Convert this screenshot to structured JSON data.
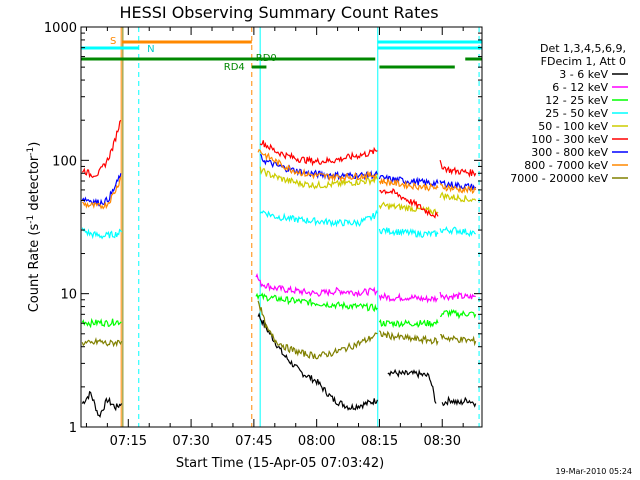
{
  "chart_data": {
    "type": "line",
    "title": "HESSI Observing Summary Count Rates",
    "xlabel": "Start Time (15-Apr-05 07:03:42)",
    "ylabel_main": "Count Rate (s",
    "ylabel_sup1": "-1",
    "ylabel_mid": " detector",
    "ylabel_sup2": "-1",
    "ylabel_end": ")",
    "y_scale": "log",
    "ylim": [
      1,
      1000
    ],
    "xlim_minutes": [
      63.7,
      159.5
    ],
    "x_ticks": [
      {
        "label": "07:15",
        "minutes": 75
      },
      {
        "label": "07:30",
        "minutes": 90
      },
      {
        "label": "07:45",
        "minutes": 105
      },
      {
        "label": "08:00",
        "minutes": 120
      },
      {
        "label": "08:15",
        "minutes": 135
      },
      {
        "label": "08:30",
        "minutes": 150
      }
    ],
    "y_ticks": [
      {
        "label": "1",
        "value": 1
      },
      {
        "label": "10",
        "value": 10
      },
      {
        "label": "100",
        "value": 100
      },
      {
        "label": "1000",
        "value": 1000
      }
    ],
    "legend": {
      "placement": "right",
      "header": [
        "Det 1,3,4,5,6,9,",
        "FDecim 1, Att 0"
      ]
    },
    "series": [
      {
        "name": "3 - 6 keV",
        "color": "#000000",
        "segments": [
          {
            "x": [
              64,
              66,
              68,
              70,
              72,
              73.4
            ],
            "y": [
              1.5,
              1.8,
              1.2,
              1.6,
              1.4,
              1.5
            ]
          },
          {
            "x": [
              106,
              108,
              112,
              116,
              120,
              124,
              128,
              132,
              134.5
            ],
            "y": [
              7.0,
              5.5,
              3.5,
              2.6,
              2.2,
              1.6,
              1.4,
              1.5,
              1.6
            ]
          },
          {
            "x": [
              137,
              140,
              144,
              147,
              148.5
            ],
            "y": [
              2.6,
              2.5,
              2.5,
              2.4,
              1.5
            ]
          },
          {
            "x": [
              150,
              152,
              154,
              156,
              158
            ],
            "y": [
              1.5,
              1.6,
              1.5,
              1.6,
              1.5
            ]
          }
        ]
      },
      {
        "name": "6 - 12 keV",
        "color": "#ff00ff",
        "segments": [
          {
            "x": [
              105.5,
              106.5,
              110,
              115,
              120,
              125,
              130,
              134.5
            ],
            "y": [
              14,
              12,
              11,
              10.5,
              10,
              10.5,
              10.2,
              10.5
            ]
          },
          {
            "x": [
              135,
              138,
              142,
              146,
              149
            ],
            "y": [
              9.6,
              9.3,
              9.4,
              9.1,
              9.2
            ]
          },
          {
            "x": [
              149.5,
              151,
              154,
              156,
              158
            ],
            "y": [
              10,
              9.5,
              9.6,
              9.4,
              9.5
            ]
          }
        ]
      },
      {
        "name": "12 - 25 keV",
        "color": "#00ff00",
        "segments": [
          {
            "x": [
              64,
              66,
              68,
              70,
              72,
              73.4
            ],
            "y": [
              6.2,
              6.0,
              6.1,
              6.0,
              6.2,
              6.1
            ]
          },
          {
            "x": [
              105.5,
              106.5,
              110,
              115,
              120,
              125,
              130,
              134.5
            ],
            "y": [
              10,
              9.5,
              9.2,
              8.8,
              8.5,
              8.2,
              8.0,
              7.8
            ]
          },
          {
            "x": [
              135,
              138,
              142,
              146,
              149
            ],
            "y": [
              6.0,
              6.0,
              6.0,
              6.0,
              6.0
            ]
          },
          {
            "x": [
              149.5,
              151,
              154,
              156,
              158
            ],
            "y": [
              7.0,
              7.2,
              7.0,
              7.1,
              7.0
            ]
          }
        ]
      },
      {
        "name": "25 - 50 keV",
        "color": "#00ffff",
        "segments": [
          {
            "x": [
              64,
              66,
              69,
              72,
              73.4
            ],
            "y": [
              30,
              28,
              27,
              28,
              29
            ]
          },
          {
            "x": [
              106.5,
              110,
              115,
              120,
              125,
              130,
              133,
              134.5
            ],
            "y": [
              42,
              38,
              36,
              35,
              34,
              34,
              37,
              40
            ]
          },
          {
            "x": [
              135,
              140,
              145,
              149
            ],
            "y": [
              30,
              29,
              28,
              28
            ]
          },
          {
            "x": [
              149.5,
              153,
              156,
              158
            ],
            "y": [
              30,
              30,
              29,
              28
            ]
          }
        ]
      },
      {
        "name": "50 - 100 keV",
        "color": "#cccc00",
        "segments": [
          {
            "x": [
              106.5,
              108,
              112,
              116,
              120,
              124,
              128,
              132,
              134.5
            ],
            "y": [
              85,
              80,
              72,
              67,
              65,
              66,
              68,
              70,
              72
            ]
          },
          {
            "x": [
              135,
              138,
              142,
              146,
              149
            ],
            "y": [
              46,
              45,
              44,
              42,
              41
            ]
          },
          {
            "x": [
              149.5,
              152,
              155,
              158
            ],
            "y": [
              55,
              53,
              52,
              50
            ]
          }
        ]
      },
      {
        "name": "100 - 300 keV",
        "color": "#ff0000",
        "segments": [
          {
            "x": [
              64,
              65,
              66,
              68,
              70,
              71.5,
              72.5,
              73.2
            ],
            "y": [
              85,
              82,
              78,
              80,
              100,
              130,
              170,
              200
            ]
          },
          {
            "x": [
              106.5,
              108,
              110,
              113,
              116,
              120,
              124,
              128,
              132,
              134.5
            ],
            "y": [
              140,
              130,
              118,
              108,
              102,
              98,
              100,
              106,
              112,
              118
            ]
          },
          {
            "x": [
              135,
              138,
              141,
              144,
              146,
              149
            ],
            "y": [
              60,
              58,
              52,
              46,
              42,
              38
            ]
          },
          {
            "x": [
              149.5,
              150.5,
              152,
              155,
              158
            ],
            "y": [
              95,
              88,
              84,
              82,
              80
            ]
          }
        ]
      },
      {
        "name": "300 - 800 keV",
        "color": "#0000ff",
        "segments": [
          {
            "x": [
              64,
              66,
              68,
              70,
              71.5,
              72.5,
              73.2
            ],
            "y": [
              52,
              50,
              48,
              50,
              60,
              70,
              80
            ]
          },
          {
            "x": [
              106.5,
              108,
              111,
              114,
              118,
              122,
              126,
              130,
              134.5
            ],
            "y": [
              105,
              98,
              90,
              85,
              80,
              78,
              77,
              77,
              78
            ]
          },
          {
            "x": [
              135,
              138,
              142,
              146,
              149
            ],
            "y": [
              74,
              72,
              70,
              68,
              67
            ]
          },
          {
            "x": [
              149.5,
              152,
              155,
              158
            ],
            "y": [
              68,
              66,
              64,
              63
            ]
          }
        ]
      },
      {
        "name": "800 - 7000 keV",
        "color": "#ff8800",
        "segments": [
          {
            "x": [
              64,
              66,
              68,
              70,
              71.5,
              72.5,
              73.2
            ],
            "y": [
              47,
              46,
              45,
              47,
              56,
              65,
              75
            ]
          },
          {
            "x": [
              106,
              108,
              111,
              114,
              118,
              122,
              126,
              130,
              134.5
            ],
            "y": [
              120,
              108,
              95,
              85,
              78,
              76,
              75,
              76,
              78
            ]
          },
          {
            "x": [
              135,
              138,
              142,
              146,
              149
            ],
            "y": [
              70,
              68,
              65,
              63,
              62
            ]
          },
          {
            "x": [
              149.5,
              152,
              155,
              158
            ],
            "y": [
              64,
              62,
              60,
              60
            ]
          }
        ]
      },
      {
        "name": "7000 - 20000 keV",
        "color": "#808000",
        "segments": [
          {
            "x": [
              64,
              66,
              68,
              70,
              72,
              73.4
            ],
            "y": [
              4.3,
              4.2,
              4.4,
              4.2,
              4.3,
              4.4
            ]
          },
          {
            "x": [
              106,
              108,
              110,
              113,
              116,
              120,
              124,
              128,
              132,
              134.5
            ],
            "y": [
              9.0,
              5.5,
              4.5,
              3.9,
              3.6,
              3.4,
              3.6,
              4.0,
              4.5,
              5.0
            ]
          },
          {
            "x": [
              135,
              138,
              142,
              146,
              149
            ],
            "y": [
              5.0,
              4.8,
              4.6,
              4.5,
              4.4
            ]
          },
          {
            "x": [
              149.5,
              152,
              155,
              158
            ],
            "y": [
              4.8,
              4.6,
              4.5,
              4.4
            ]
          }
        ]
      }
    ],
    "flag_bars": [
      {
        "label": "S",
        "color": "#ff8800",
        "x_start": 73.5,
        "x_end": 104.5,
        "level": 1
      },
      {
        "label": "N",
        "color": "#00ffff",
        "x_start": 63.7,
        "x_end": 77.5,
        "level": 2,
        "label_x": 79.5
      },
      {
        "label": "",
        "color": "#00ffff",
        "x_start": 134.5,
        "x_end": 159.5,
        "level": 1
      },
      {
        "label": "",
        "color": "#00ffff",
        "x_start": 134.5,
        "x_end": 159.5,
        "level": 2
      },
      {
        "label": "RD0",
        "color": "#008800",
        "x_start": 63.7,
        "x_end": 134.0,
        "level": 3
      },
      {
        "label": "",
        "color": "#008800",
        "x_start": 155.5,
        "x_end": 159.5,
        "level": 3
      },
      {
        "label": "RD4",
        "color": "#008800",
        "x_start": 104.5,
        "x_end": 108.0,
        "level": 4
      },
      {
        "label": "",
        "color": "#008800",
        "x_start": 135.0,
        "x_end": 153.0,
        "level": 4
      }
    ],
    "vertical_markers": [
      {
        "minutes": 73.3,
        "color": "#ff8800",
        "style": "solid"
      },
      {
        "minutes": 73.7,
        "color": "#808000",
        "style": "solid"
      },
      {
        "minutes": 77.5,
        "color": "#00ffff",
        "style": "dashed"
      },
      {
        "minutes": 104.5,
        "color": "#ff8800",
        "style": "dashed"
      },
      {
        "minutes": 106.5,
        "color": "#00ffff",
        "style": "solid"
      },
      {
        "minutes": 134.6,
        "color": "#00ffff",
        "style": "solid"
      },
      {
        "minutes": 158.8,
        "color": "#00ffff",
        "style": "dashed"
      }
    ]
  },
  "footer": {
    "timestamp": "19-Mar-2010 05:24"
  }
}
